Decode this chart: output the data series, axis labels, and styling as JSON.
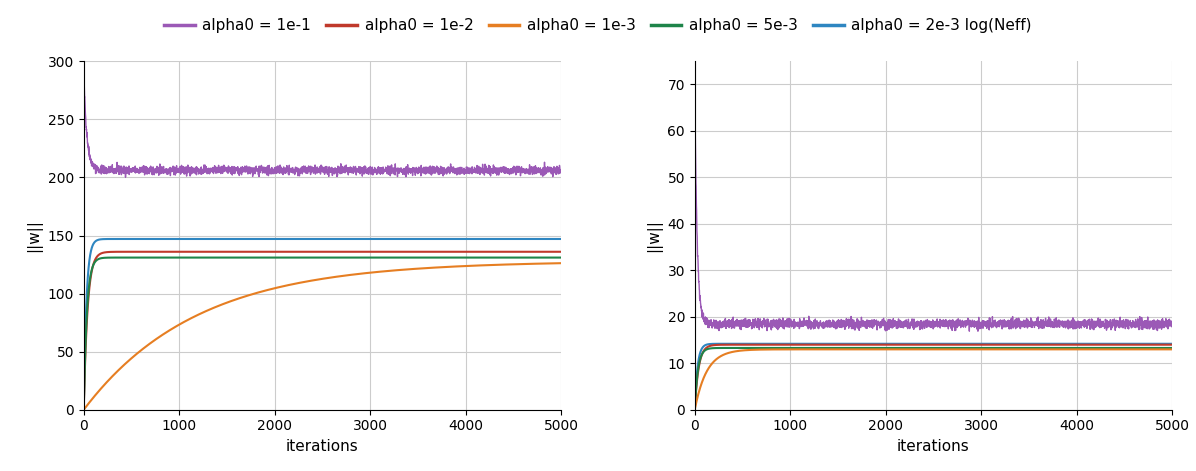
{
  "legend_labels": [
    "alpha0 = 1e-1",
    "alpha0 = 1e-2",
    "alpha0 = 1e-3",
    "alpha0 = 5e-3",
    "alpha0 = 2e-3 log(Neff)"
  ],
  "legend_colors": [
    "#9B59B6",
    "#C0392B",
    "#E67E22",
    "#1E8449",
    "#2E86C1"
  ],
  "line_widths": [
    1.0,
    1.5,
    1.5,
    1.5,
    1.5
  ],
  "n_iterations": 5000,
  "ylabel": "||w||",
  "xlabel": "iterations",
  "left_plot": {
    "ylim": [
      0,
      300
    ],
    "yticks": [
      0,
      50,
      100,
      150,
      200,
      250,
      300
    ],
    "xlim": [
      0,
      5000
    ],
    "purple_final": 206,
    "purple_noise_amp": 1.8,
    "red_final": 136,
    "red_rise_rate": 0.025,
    "orange_final": 128,
    "orange_rise_rate": 0.00085,
    "green_final": 131,
    "green_rise_rate": 0.03,
    "blue_final": 147,
    "blue_rise_rate": 0.035
  },
  "right_plot": {
    "ylim": [
      0,
      75
    ],
    "yticks": [
      0,
      10,
      20,
      30,
      40,
      50,
      60,
      70
    ],
    "xlim": [
      0,
      5000
    ],
    "purple_final": 18.5,
    "purple_noise_amp": 0.5,
    "red_final": 14.0,
    "red_rise_rate": 0.025,
    "orange_final": 13.0,
    "orange_rise_rate": 0.008,
    "green_final": 13.3,
    "green_rise_rate": 0.03,
    "blue_final": 14.2,
    "blue_rise_rate": 0.035
  },
  "background_color": "#ffffff",
  "grid_color": "#cccccc",
  "label_fontsize": 11,
  "tick_fontsize": 10,
  "legend_fontsize": 11
}
